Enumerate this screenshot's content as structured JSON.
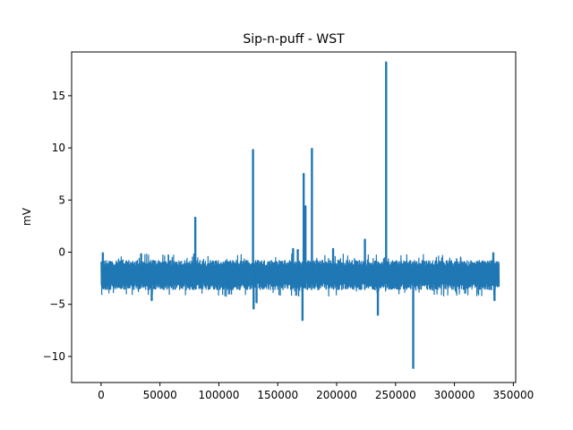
{
  "chart_data": {
    "type": "line",
    "title": "Sip-n-puff - WST",
    "xlabel": "",
    "ylabel": "mV",
    "xlim": [
      -25000,
      352000
    ],
    "ylim": [
      -12.5,
      19.2
    ],
    "x_ticks": [
      0,
      50000,
      100000,
      150000,
      200000,
      250000,
      300000,
      350000
    ],
    "x_tick_labels": [
      "0",
      "50000",
      "100000",
      "150000",
      "200000",
      "250000",
      "300000",
      "350000"
    ],
    "y_ticks": [
      -10,
      -5,
      0,
      5,
      10,
      15
    ],
    "y_tick_labels": [
      "−10",
      "−5",
      "0",
      "5",
      "10",
      "15"
    ],
    "grid": false,
    "series": [
      {
        "color": "#1f77b4",
        "x_range": [
          0,
          338000
        ],
        "band": {
          "typical_low": -3.7,
          "typical_high": -0.7,
          "center": -2.1
        },
        "spikes": [
          {
            "x": 1500,
            "y": -0.1
          },
          {
            "x": 34000,
            "y": -0.2
          },
          {
            "x": 43000,
            "y": -4.6
          },
          {
            "x": 80000,
            "y": 3.3
          },
          {
            "x": 129000,
            "y": 9.8
          },
          {
            "x": 129500,
            "y": -5.4
          },
          {
            "x": 132000,
            "y": -4.8
          },
          {
            "x": 163000,
            "y": 0.3
          },
          {
            "x": 167000,
            "y": 0.2
          },
          {
            "x": 171000,
            "y": -6.5
          },
          {
            "x": 172000,
            "y": 7.5
          },
          {
            "x": 173500,
            "y": 4.4
          },
          {
            "x": 179000,
            "y": 9.9
          },
          {
            "x": 197000,
            "y": 0.3
          },
          {
            "x": 224000,
            "y": 1.2
          },
          {
            "x": 235000,
            "y": -6.0
          },
          {
            "x": 242000,
            "y": 18.2
          },
          {
            "x": 265000,
            "y": -11.1
          },
          {
            "x": 333000,
            "y": -0.1
          },
          {
            "x": 334000,
            "y": -4.6
          }
        ]
      }
    ]
  }
}
